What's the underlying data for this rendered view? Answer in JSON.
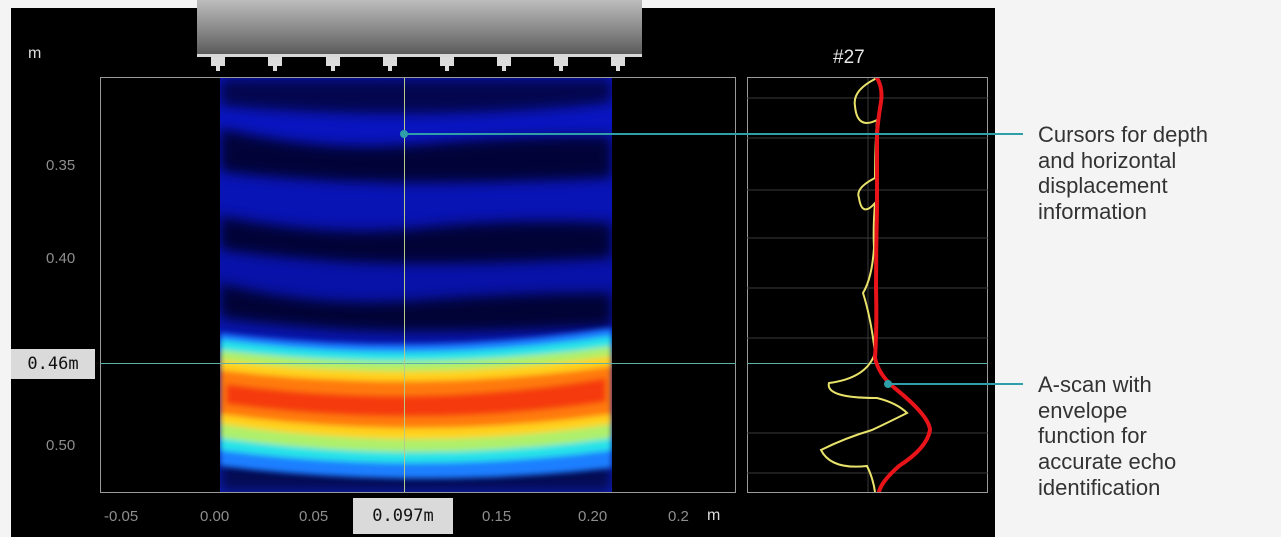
{
  "ascan": {
    "title": "#27"
  },
  "axes": {
    "y_unit": "m",
    "y_ticks": [
      "0.35",
      "0.40",
      "0.50"
    ],
    "x_ticks": [
      "-0.05",
      "0.00",
      "0.05",
      "0.15",
      "0.20",
      "0.2"
    ],
    "x_unit": "m"
  },
  "cursors": {
    "depth_label": "0.46m",
    "horizontal_label": "0.097m"
  },
  "callouts": [
    {
      "text": "Cursors for depth\nand horizontal\ndisplacement\ninformation"
    },
    {
      "text": "A-scan with\nenvelope\nfunction for\naccurate echo\nidentification"
    }
  ],
  "colors": {
    "envelope": "#e8141a",
    "ascan_signal": "#e8e26a",
    "cursor_line": "#5fb0a6",
    "callout_line": "#2e9fa8"
  }
}
